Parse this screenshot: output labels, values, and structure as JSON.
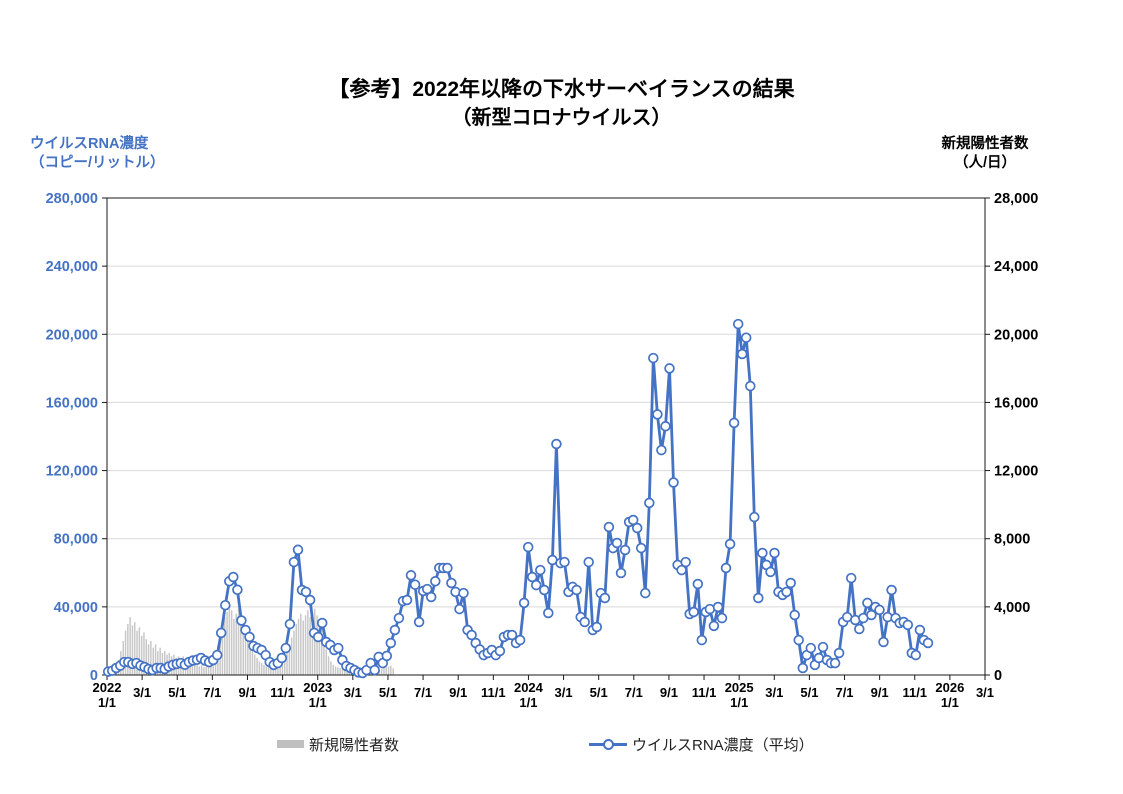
{
  "title": {
    "line1": "【参考】2022年以降の下水サーベイランスの結果",
    "line2": "（新型コロナウイルス）"
  },
  "left_axis_title": "ウイルスRNA濃度\n（コピー/リットル）",
  "right_axis_title": "新規陽性者数\n（人/日）",
  "legend": {
    "bars_label": "新規陽性者数",
    "line_label": "ウイルスRNA濃度（平均）"
  },
  "colors": {
    "line": "#4472C4",
    "marker_fill": "#FFFFFF",
    "bars": "#C8C8C8",
    "grid": "#D9D9D9",
    "axis": "#1a1a1a",
    "left_axis_text": "#4472C4",
    "right_axis_text": "#000000",
    "x_axis_text": "#000000"
  },
  "chart_data": {
    "type": "combo",
    "grid": "horizontal",
    "legend_position": "bottom",
    "left_axis": {
      "label": "ウイルスRNA濃度（コピー/リットル）",
      "max": 280000,
      "step": 40000,
      "tick_labels": [
        "280,000",
        "240,000",
        "200,000",
        "160,000",
        "120,000",
        "80,000",
        "40,000",
        "0"
      ]
    },
    "right_axis": {
      "label": "新規陽性者数（人/日）",
      "max": 28000,
      "step": 4000,
      "tick_labels": [
        "28,000",
        "24,000",
        "20,000",
        "16,000",
        "12,000",
        "8,000",
        "4,000",
        "0"
      ]
    },
    "x_axis": {
      "start_month": "2022-01",
      "months_span": 50,
      "tick_every_months": 2,
      "labels": [
        {
          "year": "2022",
          "day": "1/1"
        },
        {
          "day": "3/1"
        },
        {
          "day": "5/1"
        },
        {
          "day": "7/1"
        },
        {
          "day": "9/1"
        },
        {
          "day": "11/1"
        },
        {
          "year": "2023",
          "day": "1/1"
        },
        {
          "day": "3/1"
        },
        {
          "day": "5/1"
        },
        {
          "day": "7/1"
        },
        {
          "day": "9/1"
        },
        {
          "day": "11/1"
        },
        {
          "year": "2024",
          "day": "1/1"
        },
        {
          "day": "3/1"
        },
        {
          "day": "5/1"
        },
        {
          "day": "7/1"
        },
        {
          "day": "9/1"
        },
        {
          "day": "11/1"
        },
        {
          "year": "2025",
          "day": "1/1"
        },
        {
          "day": "3/1"
        },
        {
          "day": "5/1"
        },
        {
          "day": "7/1"
        },
        {
          "day": "9/1"
        },
        {
          "day": "11/1"
        },
        {
          "year": "2026",
          "day": "1/1"
        },
        {
          "day": "3/1"
        }
      ]
    },
    "series": [
      {
        "name": "新規陽性者数",
        "type": "bar",
        "axis": "right",
        "unit": "人/日",
        "start_date": "2022-01-01",
        "interval_days": 4,
        "values": [
          30,
          80,
          150,
          300,
          500,
          900,
          1400,
          2000,
          2600,
          3000,
          3400,
          2900,
          3100,
          2600,
          2800,
          2300,
          2500,
          2100,
          1800,
          2000,
          1600,
          1800,
          1400,
          1600,
          1300,
          1400,
          1200,
          1300,
          1100,
          1200,
          1000,
          1100,
          900,
          1100,
          800,
          1000,
          700,
          800,
          600,
          600,
          500,
          600,
          450,
          500,
          600,
          700,
          900,
          1200,
          1700,
          2300,
          2900,
          3400,
          3700,
          3900,
          3800,
          3300,
          3600,
          3900,
          3400,
          3000,
          2600,
          2200,
          1900,
          1500,
          1200,
          1000,
          800,
          700,
          600,
          500,
          450,
          500,
          550,
          600,
          700,
          800,
          900,
          1100,
          1400,
          1800,
          2200,
          2600,
          3000,
          3300,
          3600,
          3200,
          3500,
          3800,
          3400,
          3700,
          3900,
          3500,
          3200,
          2600,
          2000,
          1500,
          1100,
          800,
          600,
          500,
          450,
          400,
          450,
          350,
          400,
          300,
          350,
          300,
          250,
          300,
          220,
          250,
          200,
          220,
          250,
          280,
          250,
          300,
          280,
          350,
          400,
          450,
          500,
          550,
          400
        ]
      },
      {
        "name": "ウイルスRNA濃度（平均）",
        "type": "line",
        "axis": "left",
        "unit": "コピー/リットル",
        "start_date": "2022-01-03",
        "interval_days": 7,
        "values": [
          2000,
          2500,
          4100,
          5500,
          7600,
          7600,
          6500,
          7000,
          5500,
          4700,
          3500,
          2900,
          4100,
          4100,
          3500,
          5000,
          5900,
          6500,
          7000,
          6000,
          7600,
          8500,
          9000,
          10000,
          8500,
          7600,
          8800,
          11700,
          24700,
          41000,
          55000,
          57500,
          50000,
          32000,
          26400,
          22300,
          17000,
          15800,
          14700,
          11700,
          7600,
          5900,
          7000,
          10000,
          15800,
          29900,
          66300,
          73500,
          49900,
          48800,
          44000,
          24700,
          22300,
          30500,
          19400,
          17600,
          14700,
          15800,
          8800,
          5300,
          4100,
          2900,
          1500,
          1200,
          2900,
          7000,
          2900,
          10600,
          7000,
          11200,
          18800,
          26400,
          33400,
          43400,
          44000,
          58500,
          53000,
          31100,
          49300,
          50400,
          45800,
          55000,
          62800,
          62800,
          62800,
          54000,
          48800,
          38700,
          48100,
          26400,
          23500,
          18800,
          15000,
          11700,
          12900,
          14700,
          11700,
          14100,
          22300,
          23500,
          23500,
          18800,
          20500,
          42300,
          75100,
          57500,
          52800,
          61600,
          49900,
          36400,
          67500,
          135600,
          65700,
          66300,
          48800,
          51700,
          49900,
          34000,
          31100,
          66300,
          26400,
          28200,
          48100,
          45200,
          86900,
          74500,
          77500,
          59900,
          73400,
          89800,
          91000,
          86300,
          74500,
          48100,
          101000,
          186000,
          153000,
          132000,
          146000,
          180000,
          113000,
          64600,
          61600,
          66300,
          35800,
          37000,
          53400,
          20500,
          37000,
          38700,
          28800,
          39900,
          33400,
          62800,
          76900,
          148000,
          206000,
          188400,
          198000,
          169600,
          92700,
          45200,
          71600,
          64600,
          60500,
          71600,
          48800,
          47000,
          48800,
          54000,
          35200,
          20500,
          4100,
          11700,
          15800,
          5900,
          10000,
          16400,
          8800,
          7000,
          7000,
          12900,
          31100,
          34000,
          56900,
          32300,
          27000,
          33400,
          42300,
          35200,
          39900,
          38200,
          19400,
          34000,
          49900,
          33400,
          30500,
          31100,
          29400,
          12900,
          11700,
          26400,
          20500,
          18800
        ]
      }
    ]
  }
}
